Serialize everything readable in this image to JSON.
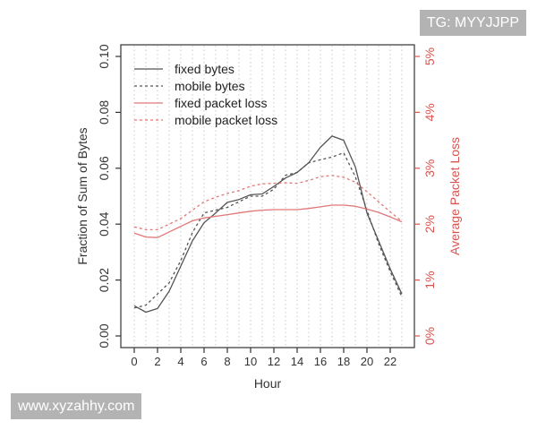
{
  "chart_data": {
    "type": "line",
    "xlabel": "Hour",
    "ylabel": "Fraction of Sum of Bytes",
    "y2label": "Average Packet Loss",
    "x_ticks": [
      "0",
      "2",
      "4",
      "6",
      "8",
      "10",
      "12",
      "14",
      "16",
      "18",
      "20",
      "22"
    ],
    "y_ticks": [
      "0.00",
      "0.02",
      "0.04",
      "0.06",
      "0.08",
      "0.10"
    ],
    "y2_ticks": [
      "0%",
      "1%",
      "2%",
      "3%",
      "4%",
      "5%"
    ],
    "xlim": [
      -1,
      24
    ],
    "ylim": [
      0,
      0.1
    ],
    "y2lim": [
      0,
      5
    ],
    "grid": "vertical dotted",
    "legend_position": "top-left",
    "x": [
      0,
      1,
      2,
      3,
      4,
      5,
      6,
      7,
      8,
      9,
      10,
      11,
      12,
      13,
      14,
      15,
      16,
      17,
      18,
      19,
      20,
      21,
      22,
      23
    ],
    "series": [
      {
        "name": "fixed bytes",
        "axis": "left",
        "color": "#555555",
        "dash": "solid",
        "values": [
          0.0108,
          0.0085,
          0.0098,
          0.016,
          0.025,
          0.034,
          0.0405,
          0.044,
          0.0478,
          0.0488,
          0.0505,
          0.0508,
          0.0535,
          0.0565,
          0.0585,
          0.062,
          0.0675,
          0.0715,
          0.07,
          0.0605,
          0.044,
          0.034,
          0.024,
          0.015
        ]
      },
      {
        "name": "mobile bytes",
        "axis": "left",
        "color": "#555555",
        "dash": "dotted",
        "values": [
          0.01,
          0.011,
          0.015,
          0.019,
          0.027,
          0.037,
          0.044,
          0.045,
          0.046,
          0.048,
          0.05,
          0.05,
          0.0525,
          0.0575,
          0.0585,
          0.062,
          0.063,
          0.064,
          0.0655,
          0.057,
          0.045,
          0.033,
          0.023,
          0.014
        ]
      },
      {
        "name": "fixed packet loss",
        "axis": "right",
        "color": "#e07878",
        "dash": "solid",
        "values": [
          1.84,
          1.77,
          1.76,
          1.86,
          1.96,
          2.06,
          2.11,
          2.14,
          2.17,
          2.2,
          2.23,
          2.25,
          2.26,
          2.26,
          2.26,
          2.28,
          2.31,
          2.34,
          2.34,
          2.32,
          2.27,
          2.21,
          2.13,
          2.04
        ]
      },
      {
        "name": "mobile packet loss",
        "axis": "right",
        "color": "#e07878",
        "dash": "dotted",
        "values": [
          1.95,
          1.9,
          1.9,
          2.0,
          2.1,
          2.25,
          2.4,
          2.48,
          2.55,
          2.6,
          2.68,
          2.72,
          2.73,
          2.74,
          2.73,
          2.78,
          2.85,
          2.87,
          2.84,
          2.75,
          2.58,
          2.4,
          2.22,
          2.05
        ]
      }
    ]
  },
  "watermarks": {
    "top": "TG: MYYJJPP",
    "bottom": "www.xyzahhy.com"
  },
  "colors": {
    "axis_dark": "#333333",
    "axis_red": "#d9534f",
    "grid": "#c8c8c8"
  }
}
